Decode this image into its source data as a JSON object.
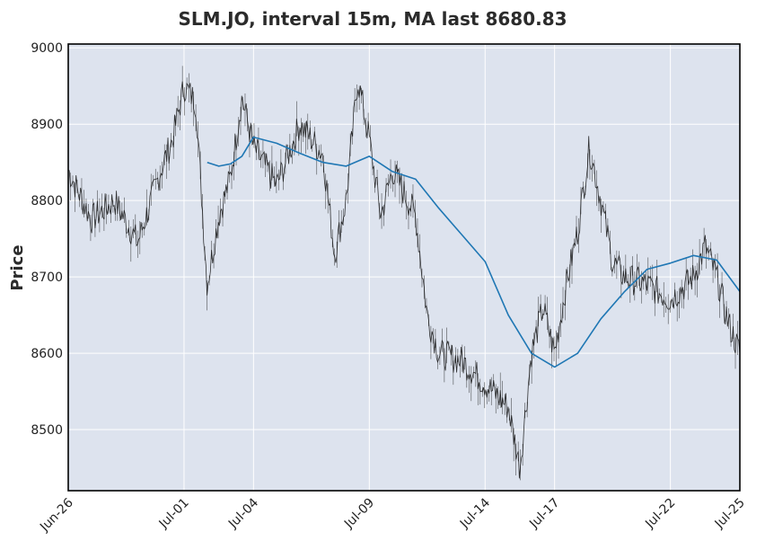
{
  "chart_data": {
    "type": "candlestick",
    "title": "SLM.JO, interval 15m, MA last 8680.83",
    "xlabel": "",
    "ylabel": "Price",
    "ylim": [
      8420,
      9005
    ],
    "y_ticks": [
      8500,
      8600,
      8700,
      8800,
      8900,
      9000
    ],
    "x_ticks": [
      "Jun-26",
      "Jul-01",
      "Jul-04",
      "Jul-09",
      "Jul-14",
      "Jul-17",
      "Jul-22",
      "Jul-25"
    ],
    "grid": true,
    "price_series": {
      "name": "",
      "path": [
        [
          "Jun-26",
          8840
        ],
        [
          "Jun-27",
          8775
        ],
        [
          "Jun-28",
          8800
        ],
        [
          "Jun-29",
          8745
        ],
        [
          "Jun-30",
          8840
        ],
        [
          "Jun-30b",
          8880
        ],
        [
          "Jul-01",
          8950
        ],
        [
          "Jul-01b",
          8930
        ],
        [
          "Jul-02",
          8690
        ],
        [
          "Jul-02b",
          8780
        ],
        [
          "Jul-03",
          8830
        ],
        [
          "Jul-03b",
          8935
        ],
        [
          "Jul-04",
          8870
        ],
        [
          "Jul-05",
          8820
        ],
        [
          "Jul-06",
          8900
        ],
        [
          "Jul-07",
          8860
        ],
        [
          "Jul-07b",
          8730
        ],
        [
          "Jul-08",
          8800
        ],
        [
          "Jul-08b",
          8960
        ],
        [
          "Jul-09",
          8880
        ],
        [
          "Jul-09b",
          8780
        ],
        [
          "Jul-10",
          8840
        ],
        [
          "Jul-11",
          8780
        ],
        [
          "Jul-11b",
          8650
        ],
        [
          "Jul-12",
          8600
        ],
        [
          "Jul-13",
          8590
        ],
        [
          "Jul-14",
          8560
        ],
        [
          "Jul-15",
          8530
        ],
        [
          "Jul-15b",
          8450
        ],
        [
          "Jul-16",
          8600
        ],
        [
          "Jul-16b",
          8660
        ],
        [
          "Jul-17",
          8600
        ],
        [
          "Jul-17b",
          8690
        ],
        [
          "Jul-18",
          8760
        ],
        [
          "Jul-18b",
          8870
        ],
        [
          "Jul-19",
          8800
        ],
        [
          "Jul-19b",
          8720
        ],
        [
          "Jul-20",
          8700
        ],
        [
          "Jul-21",
          8690
        ],
        [
          "Jul-22",
          8670
        ],
        [
          "Jul-23",
          8700
        ],
        [
          "Jul-23b",
          8740
        ],
        [
          "Jul-24",
          8700
        ],
        [
          "Jul-24b",
          8640
        ],
        [
          "Jul-25",
          8600
        ]
      ]
    },
    "ma_series": {
      "name": "MA",
      "color": "#1f77b4",
      "last_value": 8680.83,
      "path": [
        [
          "Jul-02",
          8850
        ],
        [
          "Jul-02b",
          8845
        ],
        [
          "Jul-03",
          8848
        ],
        [
          "Jul-03b",
          8858
        ],
        [
          "Jul-04",
          8883
        ],
        [
          "Jul-05",
          8875
        ],
        [
          "Jul-06",
          8862
        ],
        [
          "Jul-07",
          8850
        ],
        [
          "Jul-08",
          8845
        ],
        [
          "Jul-09",
          8858
        ],
        [
          "Jul-10",
          8838
        ],
        [
          "Jul-11",
          8828
        ],
        [
          "Jul-12",
          8790
        ],
        [
          "Jul-13",
          8755
        ],
        [
          "Jul-14",
          8720
        ],
        [
          "Jul-15",
          8650
        ],
        [
          "Jul-16",
          8600
        ],
        [
          "Jul-17",
          8582
        ],
        [
          "Jul-18",
          8600
        ],
        [
          "Jul-19",
          8645
        ],
        [
          "Jul-20",
          8680
        ],
        [
          "Jul-21",
          8710
        ],
        [
          "Jul-22",
          8718
        ],
        [
          "Jul-23",
          8728
        ],
        [
          "Jul-24",
          8722
        ],
        [
          "Jul-25",
          8680.83
        ]
      ]
    },
    "colors": {
      "plot_background": "#dde3ee",
      "grid": "#ffffff",
      "price_line": "#111111",
      "ma_line": "#1f77b4",
      "frame": "#000000"
    }
  }
}
